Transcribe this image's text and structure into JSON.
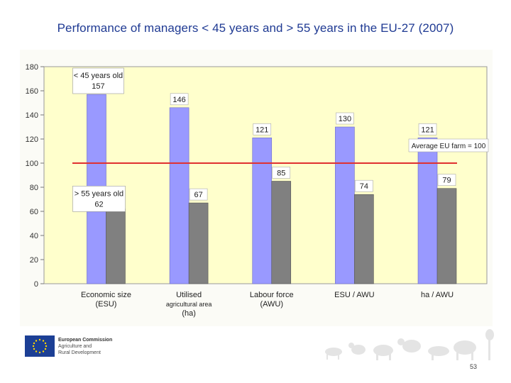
{
  "title": "Performance of managers < 45 years and > 55 years in the EU-27 (2007)",
  "chart_data": {
    "type": "bar",
    "categories": [
      [
        "Economic size",
        "(ESU)"
      ],
      [
        "Utilised",
        "agricultural area",
        "(ha)"
      ],
      [
        "Labour force",
        "(AWU)"
      ],
      [
        "ESU / AWU"
      ],
      [
        "ha / AWU"
      ]
    ],
    "series": [
      {
        "name": "< 45 years old",
        "values": [
          157,
          146,
          121,
          130,
          121
        ],
        "color": "#9999ff"
      },
      {
        "name": "> 55 years old",
        "values": [
          62,
          67,
          85,
          74,
          79
        ],
        "color": "#808080"
      }
    ],
    "ylim": [
      0,
      180
    ],
    "yticks": [
      0,
      20,
      40,
      60,
      80,
      100,
      120,
      140,
      160,
      180
    ],
    "reference_line": {
      "value": 100,
      "label": "Average EU farm = 100",
      "color": "#e03030"
    },
    "callouts": [
      {
        "lines": [
          "< 45 years old",
          "157"
        ]
      },
      {
        "lines": [
          "> 55 years old",
          "62"
        ]
      }
    ],
    "legend": "none",
    "grid": false
  },
  "footer": {
    "org_lines": [
      "European Commission",
      "Agriculture and",
      "Rural Development"
    ],
    "page_number": "53"
  }
}
